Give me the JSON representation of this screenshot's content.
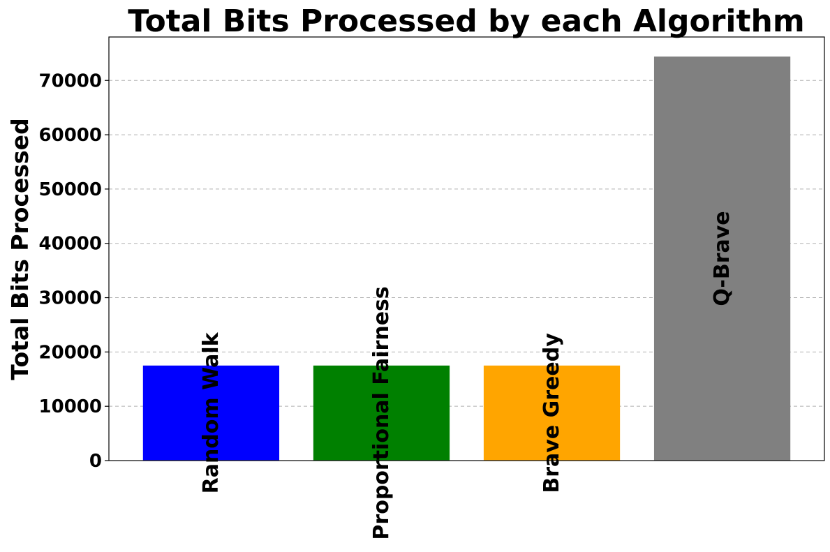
{
  "chart_data": {
    "type": "bar",
    "title": "Total Bits Processed by each Algorithm",
    "xlabel": "",
    "ylabel": "Total Bits Processed",
    "categories": [
      "Random Walk",
      "Proportional Fairness",
      "Brave Greedy",
      "Q-Brave"
    ],
    "values": [
      17500,
      17500,
      17500,
      74400
    ],
    "colors": [
      "#0000ff",
      "#008000",
      "#ffa500",
      "#808080"
    ],
    "ylim": [
      0,
      78000
    ],
    "yticks": [
      0,
      10000,
      20000,
      30000,
      40000,
      50000,
      60000,
      70000
    ],
    "ytick_labels": [
      "0",
      "10000",
      "20000",
      "30000",
      "40000",
      "50000",
      "60000",
      "70000"
    ],
    "grid": "y-dashed",
    "legend": "none",
    "category_label_placement": "rotated vertical inside bars"
  }
}
